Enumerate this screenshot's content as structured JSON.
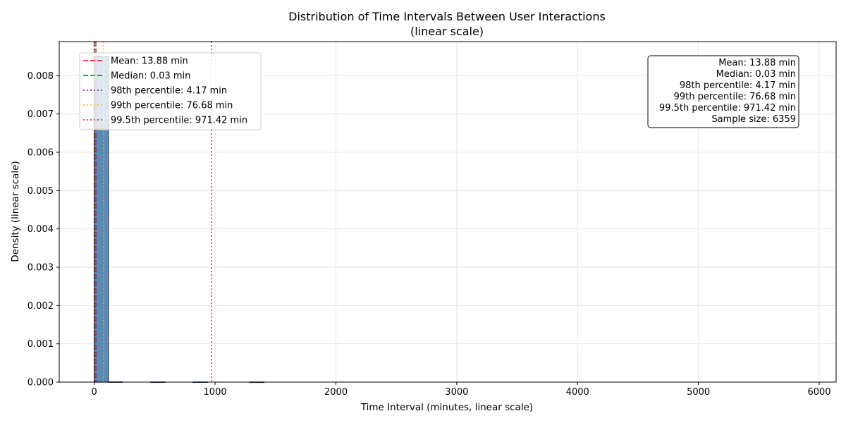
{
  "chart_data": {
    "type": "bar",
    "title": "Distribution of Time Intervals Between User Interactions",
    "subtitle": "(linear scale)",
    "xlabel": "Time Interval (minutes, linear scale)",
    "ylabel": "Density (linear scale)",
    "xlim": [
      -290,
      6140
    ],
    "ylim": [
      0,
      0.00889
    ],
    "x_ticks": [
      0,
      1000,
      2000,
      3000,
      4000,
      5000,
      6000
    ],
    "x_tick_labels": [
      "0",
      "1000",
      "2000",
      "3000",
      "4000",
      "5000",
      "6000"
    ],
    "y_ticks": [
      0,
      0.001,
      0.002,
      0.003,
      0.004,
      0.005,
      0.006,
      0.007,
      0.008
    ],
    "y_tick_labels": [
      "0.000",
      "0.001",
      "0.002",
      "0.003",
      "0.004",
      "0.005",
      "0.006",
      "0.007",
      "0.008"
    ],
    "grid": true,
    "bar_color": "#3b77b0",
    "bar_edge_color": "#1f3b5c",
    "bins": [
      {
        "x0": 0,
        "x1": 117,
        "density": 0.00851
      },
      {
        "x0": 117,
        "x1": 234,
        "density": 5e-06
      },
      {
        "x0": 468,
        "x1": 585,
        "density": 3e-06
      },
      {
        "x0": 819,
        "x1": 936,
        "density": 3e-06
      },
      {
        "x0": 1287,
        "x1": 1404,
        "density": 2e-06
      }
    ],
    "reference_lines": [
      {
        "name": "Mean",
        "value": 13.88,
        "color": "#ff0000",
        "style": "dashed"
      },
      {
        "name": "Median",
        "value": 0.03,
        "color": "#008000",
        "style": "dashed"
      },
      {
        "name": "98th percentile",
        "value": 4.17,
        "color": "#800080",
        "style": "dotted"
      },
      {
        "name": "99th percentile",
        "value": 76.68,
        "color": "#ffa500",
        "style": "dotted"
      },
      {
        "name": "99.5th percentile",
        "value": 971.42,
        "color": "#a52a2a",
        "style": "dotted"
      }
    ],
    "legend": {
      "placement": "top-left",
      "entries": [
        "Mean: 13.88 min",
        "Median: 0.03 min",
        "98th percentile: 4.17 min",
        "99th percentile: 76.68 min",
        "99.5th percentile: 971.42 min"
      ]
    },
    "stats_box": {
      "placement": "top-right",
      "lines": [
        "Mean: 13.88 min",
        "Median: 0.03 min",
        "98th percentile: 4.17 min",
        "99th percentile: 76.68 min",
        "99.5th percentile: 971.42 min",
        "Sample size: 6359"
      ]
    }
  }
}
